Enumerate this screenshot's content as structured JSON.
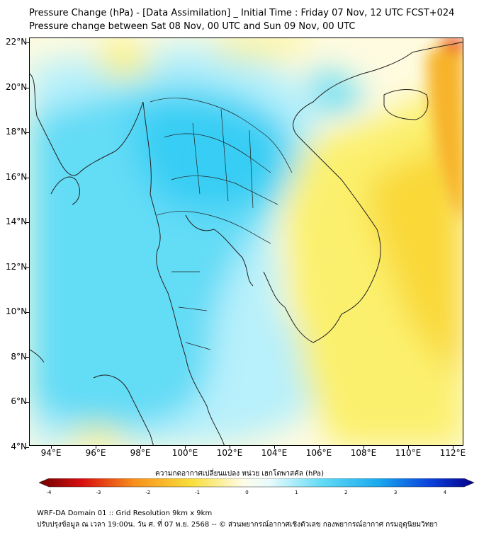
{
  "header": {
    "title_line1": "Pressure Change (hPa) - [Data Assimilation] _ Initial Time : Friday 07 Nov, 12 UTC FCST+024",
    "title_line2": "Pressure change between Sat 08 Nov, 00 UTC and Sun 09 Nov, 00 UTC"
  },
  "map": {
    "lat_ticks": [
      "22°N",
      "20°N",
      "18°N",
      "16°N",
      "14°N",
      "12°N",
      "10°N",
      "8°N",
      "6°N",
      "4°N"
    ],
    "lon_ticks": [
      "94°E",
      "96°E",
      "98°E",
      "100°E",
      "102°E",
      "104°E",
      "106°E",
      "108°E",
      "110°E",
      "112°E"
    ],
    "colors": {
      "neutral": "#fefbe0",
      "cyan_light": "#b8f0fb",
      "cyan": "#63dcf6",
      "cyan_strong": "#39cdf4",
      "yellow": "#fbf06d",
      "yellow_deep": "#f9d838",
      "orange": "#f7b32b",
      "red": "#e8211c",
      "coast": "#222222"
    }
  },
  "colorbar": {
    "label": "ความกดอากาศเปลี่ยนแปลง หน่วย เฮกโตพาสคัล (hPa)",
    "ticks": [
      "-4",
      "-3",
      "-2",
      "-1",
      "0",
      "1",
      "2",
      "3",
      "4"
    ]
  },
  "footer": {
    "line1": "WRF-DA Domain 01 :: Grid Resolution 9km x 9km",
    "line2": "ปรับปรุงข้อมูล ณ เวลา 19:00น. วัน ศ. ที่ 07 พ.ย. 2568 -- © ส่วนพยากรณ์อากาศเชิงตัวเลข กองพยากรณ์อากาศ กรมอุตุนิยมวิทยา"
  }
}
